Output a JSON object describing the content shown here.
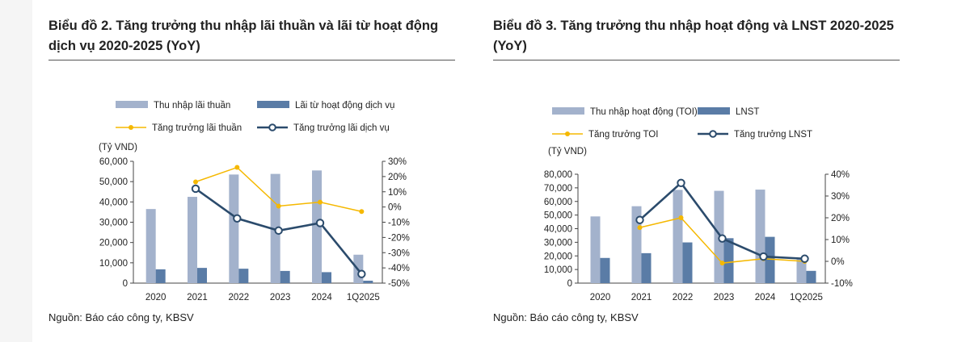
{
  "colors": {
    "bar1": "#a3b2cc",
    "bar2": "#5a7ca6",
    "line1": "#f5b800",
    "line2": "#2b4b6c",
    "axis": "#444444",
    "text": "#222222"
  },
  "chart_data": [
    {
      "type": "bar+line",
      "title": "Biểu đồ 2. Tăng trưởng thu nhập lãi thuần và lãi từ hoạt động dịch vụ 2020-2025 (YoY)",
      "title_line1": "Biểu đồ 2. Tăng trưởng thu nhập lãi thuần và lãi từ hoạt động",
      "title_line2": "dịch vụ 2020-2025 (YoY)",
      "unit_label": "(Tỷ VND)",
      "categories": [
        "2020",
        "2021",
        "2022",
        "2023",
        "2024",
        "1Q2025"
      ],
      "left_axis": {
        "min": 0,
        "max": 60000,
        "ticks": [
          "0",
          "10,000",
          "20,000",
          "30,000",
          "40,000",
          "50,000",
          "60,000"
        ]
      },
      "right_axis": {
        "min": -50,
        "max": 30,
        "ticks": [
          "-50%",
          "-40%",
          "-30%",
          "-20%",
          "-10%",
          "0%",
          "10%",
          "20%",
          "30%"
        ]
      },
      "bar_series": [
        {
          "name": "Thu nhập lãi thuần",
          "values": [
            36500,
            42500,
            53500,
            53800,
            55500,
            14000
          ]
        },
        {
          "name": "Lãi từ hoạt động dịch vụ",
          "values": [
            6800,
            7500,
            7100,
            6000,
            5400,
            1200
          ]
        }
      ],
      "line_series": [
        {
          "name": "Tăng trưởng lãi thuần",
          "values": [
            null,
            16.5,
            26,
            0.6,
            3.2,
            -3
          ]
        },
        {
          "name": "Tăng trưởng lãi dịch vụ",
          "values": [
            null,
            12,
            -7.5,
            -15.5,
            -10.5,
            -44
          ]
        }
      ],
      "source": "Nguồn: Báo cáo công ty, KBSV"
    },
    {
      "type": "bar+line",
      "title": "Biểu đồ 3. Tăng trưởng thu nhập hoạt động và LNST 2020-2025 (YoY)",
      "title_line1": "Biểu đồ 3. Tăng trưởng thu nhập hoạt động và LNST 2020-2025",
      "title_line2": "(YoY)",
      "unit_label": "(Tỷ VND)",
      "categories": [
        "2020",
        "2021",
        "2022",
        "2023",
        "2024",
        "1Q2025"
      ],
      "left_axis": {
        "min": 0,
        "max": 80000,
        "ticks": [
          "0",
          "10,000",
          "20,000",
          "30,000",
          "40,000",
          "50,000",
          "60,000",
          "70,000",
          "80,000"
        ]
      },
      "right_axis": {
        "min": -10,
        "max": 40,
        "ticks": [
          "-10%",
          "0%",
          "10%",
          "20%",
          "30%",
          "40%"
        ]
      },
      "bar_series": [
        {
          "name": "Thu nhập hoạt động (TOI)",
          "values": [
            49000,
            56500,
            68500,
            67800,
            68700,
            17500
          ]
        },
        {
          "name": "LNST",
          "values": [
            18500,
            22000,
            29900,
            33000,
            34000,
            9000
          ]
        }
      ],
      "line_series": [
        {
          "name": "Tăng trưởng TOI",
          "values": [
            null,
            15.5,
            20,
            -0.8,
            1.2,
            0
          ]
        },
        {
          "name": "Tăng trưởng LNST",
          "values": [
            null,
            19,
            36,
            10.5,
            2.2,
            1.2
          ]
        }
      ],
      "source": "Nguồn: Báo cáo công ty, KBSV"
    }
  ]
}
